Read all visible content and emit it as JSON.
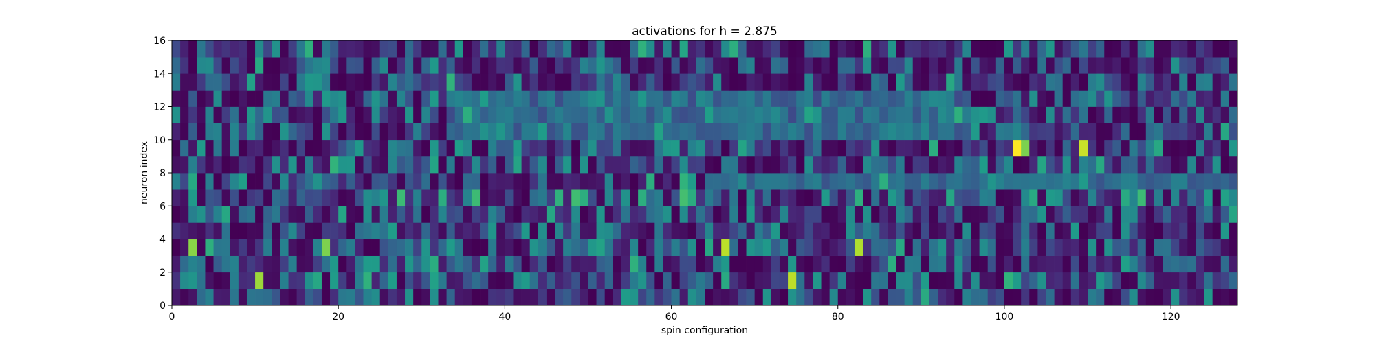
{
  "chart_data": {
    "type": "heatmap",
    "title": "activations for h = 2.875",
    "xlabel": "spin configuration",
    "ylabel": "neuron index",
    "xlim": [
      0,
      128
    ],
    "ylim": [
      0,
      16
    ],
    "n_cols": 128,
    "n_rows": 16,
    "x_ticks": [
      0,
      20,
      40,
      60,
      80,
      100,
      120
    ],
    "y_ticks": [
      0,
      2,
      4,
      6,
      8,
      10,
      12,
      14,
      16
    ],
    "colormap": "viridis",
    "colormap_stops": [
      "#440154",
      "#482878",
      "#3e4a89",
      "#31688e",
      "#26828e",
      "#1f9e89",
      "#35b779",
      "#6ece58",
      "#b5de2b",
      "#fde725"
    ],
    "grid": false,
    "notable_cells": [
      {
        "col": 101,
        "row": 9,
        "value": 1.0
      },
      {
        "col": 102,
        "row": 9,
        "value": 0.8
      },
      {
        "col": 109,
        "row": 9,
        "value": 0.92
      },
      {
        "col": 74,
        "row": 1,
        "value": 0.9
      },
      {
        "col": 66,
        "row": 3,
        "value": 0.9
      },
      {
        "col": 82,
        "row": 3,
        "value": 0.88
      },
      {
        "col": 10,
        "row": 1,
        "value": 0.85
      },
      {
        "col": 2,
        "row": 3,
        "value": 0.82
      },
      {
        "col": 18,
        "row": 3,
        "value": 0.8
      }
    ]
  }
}
